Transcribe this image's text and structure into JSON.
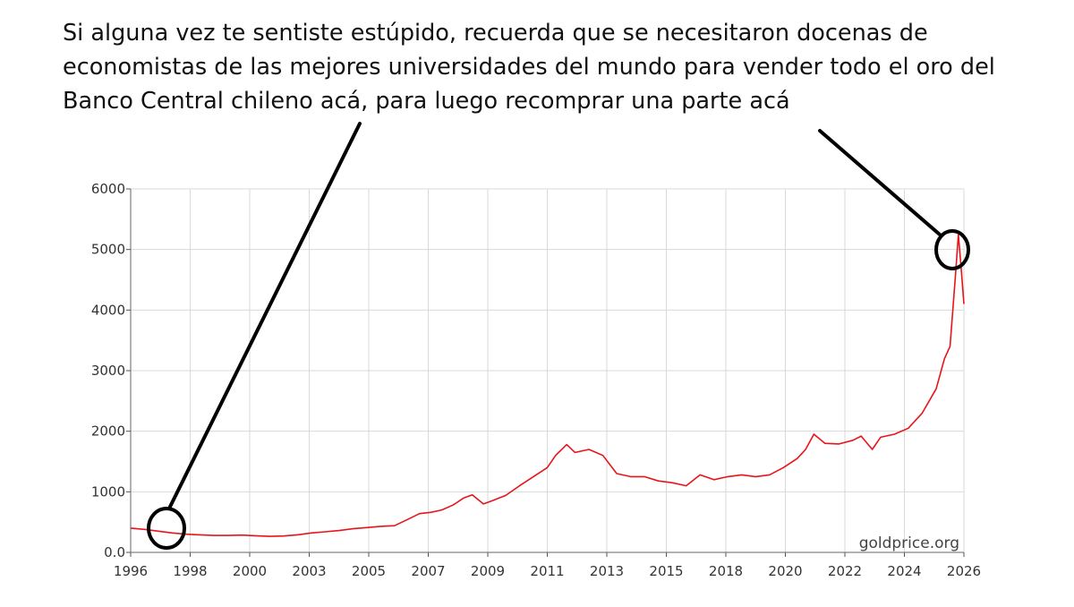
{
  "caption": {
    "lines": [
      "Si alguna vez te sentiste estúpido, recuerda que se necesitaron docenas de",
      "economistas de las mejores universidades del mundo para vender todo el oro del",
      "Banco Central chileno acá, para luego recomprar una parte acá"
    ]
  },
  "watermark": "goldprice.org",
  "colors": {
    "series": "#e8141b",
    "grid": "#d9d9d9",
    "annotation": "#000000"
  },
  "chart_data": {
    "type": "line",
    "title": "",
    "xlabel": "",
    "ylabel": "",
    "xlim": [
      1996,
      2026
    ],
    "ylim": [
      0,
      6000
    ],
    "grid": true,
    "x_tick_labels": [
      "1996",
      "1998",
      "2000",
      "2003",
      "2005",
      "2007",
      "2009",
      "2011",
      "2013",
      "2015",
      "2018",
      "2020",
      "2022",
      "2024",
      "2026"
    ],
    "y_tick_labels": [
      "0.0",
      "1000",
      "2000",
      "3000",
      "4000",
      "5000",
      "6000"
    ],
    "y_tick_values": [
      0,
      1000,
      2000,
      3000,
      4000,
      5000,
      6000
    ],
    "series": [
      {
        "x": [
          1996.0,
          1996.5,
          1997.0,
          1997.5,
          1998.0,
          1998.5,
          1999.0,
          1999.5,
          2000.0,
          2000.5,
          2001.0,
          2001.5,
          2002.0,
          2002.5,
          2003.0,
          2003.5,
          2004.0,
          2004.5,
          2005.0,
          2005.5,
          2006.0,
          2006.4,
          2006.8,
          2007.2,
          2007.6,
          2008.0,
          2008.3,
          2008.7,
          2009.0,
          2009.5,
          2010.0,
          2010.5,
          2011.0,
          2011.3,
          2011.7,
          2012.0,
          2012.5,
          2013.0,
          2013.5,
          2014.0,
          2014.5,
          2015.0,
          2015.5,
          2016.0,
          2016.5,
          2017.0,
          2017.5,
          2018.0,
          2018.5,
          2019.0,
          2019.5,
          2020.0,
          2020.3,
          2020.6,
          2021.0,
          2021.5,
          2022.0,
          2022.3,
          2022.7,
          2023.0,
          2023.5,
          2024.0,
          2024.5,
          2025.0,
          2025.3,
          2025.5,
          2025.6,
          2025.7,
          2025.8,
          2025.9,
          2026.0
        ],
        "y": [
          400,
          380,
          350,
          320,
          300,
          290,
          280,
          280,
          285,
          275,
          265,
          270,
          290,
          320,
          340,
          360,
          390,
          410,
          430,
          440,
          550,
          640,
          660,
          700,
          780,
          900,
          950,
          800,
          850,
          940,
          1100,
          1250,
          1400,
          1600,
          1780,
          1650,
          1700,
          1600,
          1300,
          1250,
          1250,
          1180,
          1150,
          1100,
          1280,
          1200,
          1250,
          1280,
          1250,
          1280,
          1400,
          1550,
          1700,
          1950,
          1800,
          1790,
          1850,
          1920,
          1700,
          1900,
          1950,
          2050,
          2300,
          2700,
          3200,
          3400,
          4000,
          4600,
          5250,
          4700,
          4100
        ]
      }
    ]
  }
}
